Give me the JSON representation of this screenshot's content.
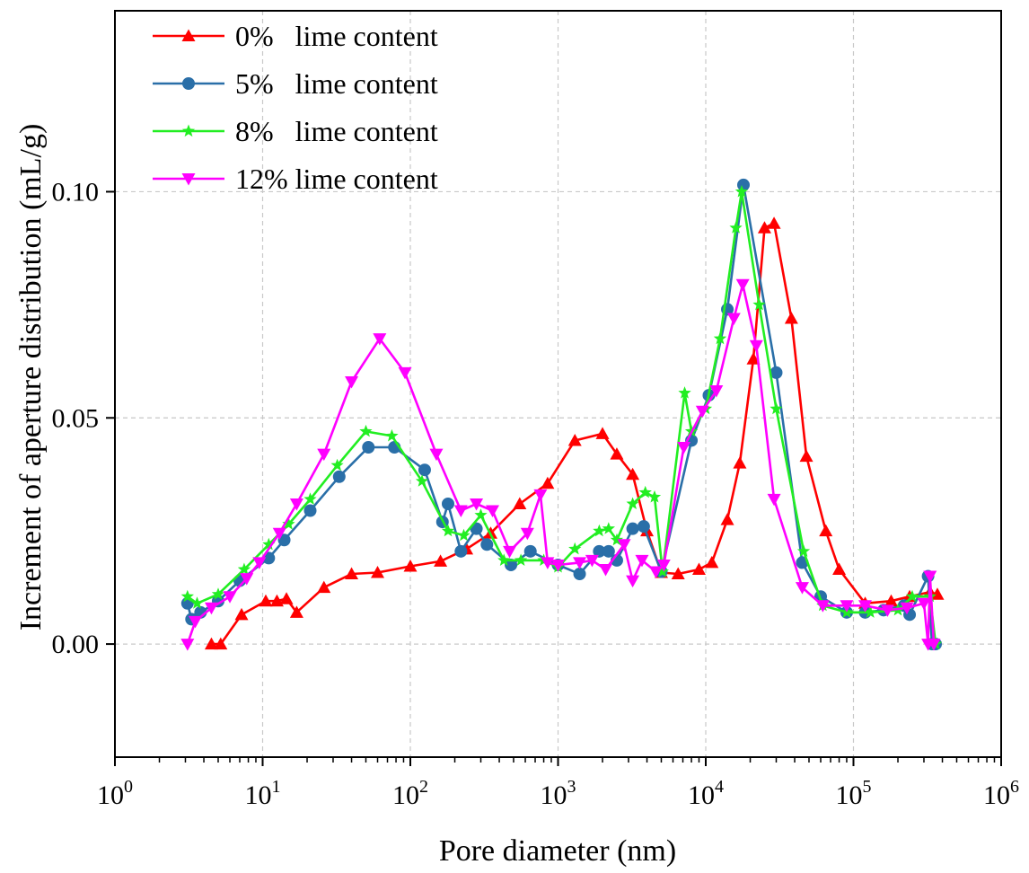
{
  "chart_data": {
    "type": "line",
    "xscale": "log",
    "xlabel": "Pore diameter (nm)",
    "ylabel": "Increment of aperture distribution (mL/g)",
    "xlim": [
      1,
      1000000
    ],
    "ylim": [
      -0.025,
      0.14
    ],
    "grid": true,
    "legend_position": "top-left",
    "x_ticks": [
      {
        "value": 1,
        "base": "10",
        "exp": "0"
      },
      {
        "value": 10,
        "base": "10",
        "exp": "1"
      },
      {
        "value": 100,
        "base": "10",
        "exp": "2"
      },
      {
        "value": 1000,
        "base": "10",
        "exp": "3"
      },
      {
        "value": 10000,
        "base": "10",
        "exp": "4"
      },
      {
        "value": 100000,
        "base": "10",
        "exp": "5"
      },
      {
        "value": 1000000,
        "base": "10",
        "exp": "6"
      }
    ],
    "y_ticks": [
      {
        "value": 0.0,
        "label": "0.00"
      },
      {
        "value": 0.05,
        "label": "0.05"
      },
      {
        "value": 0.1,
        "label": "0.10"
      }
    ],
    "series": [
      {
        "name": "0%   lime content",
        "color": "#ff0000",
        "marker": "triangle-up",
        "points": [
          [
            4.5,
            0.0
          ],
          [
            5.2,
            0.0
          ],
          [
            7.2,
            0.0065
          ],
          [
            10.5,
            0.0095
          ],
          [
            12.5,
            0.0095
          ],
          [
            14.5,
            0.01
          ],
          [
            17,
            0.007
          ],
          [
            26,
            0.0125
          ],
          [
            40,
            0.0155
          ],
          [
            60,
            0.0158
          ],
          [
            100,
            0.0172
          ],
          [
            160,
            0.0183
          ],
          [
            240,
            0.021
          ],
          [
            350,
            0.0245
          ],
          [
            550,
            0.031
          ],
          [
            850,
            0.0355
          ],
          [
            1300,
            0.045
          ],
          [
            2000,
            0.0465
          ],
          [
            2500,
            0.042
          ],
          [
            3200,
            0.0375
          ],
          [
            4000,
            0.025
          ],
          [
            5000,
            0.0158
          ],
          [
            6500,
            0.0155
          ],
          [
            9000,
            0.0165
          ],
          [
            11000,
            0.018
          ],
          [
            14000,
            0.0275
          ],
          [
            17000,
            0.04
          ],
          [
            21000,
            0.063
          ],
          [
            25000,
            0.092
          ],
          [
            29000,
            0.093
          ],
          [
            38000,
            0.072
          ],
          [
            48000,
            0.0415
          ],
          [
            65000,
            0.025
          ],
          [
            80000,
            0.0165
          ],
          [
            120000,
            0.009
          ],
          [
            180000,
            0.0095
          ],
          [
            240000,
            0.0105
          ],
          [
            330000,
            0.0115
          ],
          [
            370000,
            0.011
          ]
        ]
      },
      {
        "name": "5%   lime content",
        "color": "#2a6fa8",
        "marker": "circle",
        "points": [
          [
            3.1,
            0.009
          ],
          [
            3.3,
            0.0055
          ],
          [
            3.8,
            0.007
          ],
          [
            5,
            0.0095
          ],
          [
            7,
            0.014
          ],
          [
            11,
            0.019
          ],
          [
            14,
            0.023
          ],
          [
            21,
            0.0295
          ],
          [
            33,
            0.037
          ],
          [
            52,
            0.0435
          ],
          [
            78,
            0.0435
          ],
          [
            125,
            0.0385
          ],
          [
            165,
            0.027
          ],
          [
            180,
            0.031
          ],
          [
            220,
            0.0205
          ],
          [
            280,
            0.0255
          ],
          [
            330,
            0.022
          ],
          [
            480,
            0.0175
          ],
          [
            650,
            0.0205
          ],
          [
            1000,
            0.0175
          ],
          [
            1400,
            0.0155
          ],
          [
            1900,
            0.0205
          ],
          [
            2200,
            0.0205
          ],
          [
            2500,
            0.0185
          ],
          [
            3200,
            0.0255
          ],
          [
            3800,
            0.026
          ],
          [
            5000,
            0.016
          ],
          [
            8000,
            0.045
          ],
          [
            10500,
            0.055
          ],
          [
            14000,
            0.074
          ],
          [
            18000,
            0.1015
          ],
          [
            30000,
            0.06
          ],
          [
            45000,
            0.018
          ],
          [
            60000,
            0.0105
          ],
          [
            90000,
            0.007
          ],
          [
            120000,
            0.007
          ],
          [
            160000,
            0.0075
          ],
          [
            220000,
            0.0085
          ],
          [
            240000,
            0.0065
          ],
          [
            320000,
            0.015
          ],
          [
            340000,
            0.0
          ],
          [
            360000,
            0.0
          ]
        ]
      },
      {
        "name": "8%   lime content",
        "color": "#22ee22",
        "marker": "star",
        "points": [
          [
            3.1,
            0.0105
          ],
          [
            3.6,
            0.009
          ],
          [
            5,
            0.011
          ],
          [
            7.5,
            0.0165
          ],
          [
            11,
            0.022
          ],
          [
            15,
            0.0265
          ],
          [
            21,
            0.032
          ],
          [
            32,
            0.0395
          ],
          [
            50,
            0.047
          ],
          [
            75,
            0.046
          ],
          [
            120,
            0.036
          ],
          [
            180,
            0.025
          ],
          [
            230,
            0.024
          ],
          [
            300,
            0.0285
          ],
          [
            430,
            0.0185
          ],
          [
            560,
            0.0185
          ],
          [
            800,
            0.0185
          ],
          [
            1000,
            0.017
          ],
          [
            1300,
            0.021
          ],
          [
            1900,
            0.025
          ],
          [
            2200,
            0.0255
          ],
          [
            2500,
            0.023
          ],
          [
            3200,
            0.031
          ],
          [
            3900,
            0.0335
          ],
          [
            4500,
            0.0325
          ],
          [
            5100,
            0.016
          ],
          [
            7200,
            0.0555
          ],
          [
            8000,
            0.047
          ],
          [
            10000,
            0.052
          ],
          [
            12500,
            0.0675
          ],
          [
            16000,
            0.092
          ],
          [
            17500,
            0.1
          ],
          [
            23000,
            0.075
          ],
          [
            30000,
            0.052
          ],
          [
            46000,
            0.0205
          ],
          [
            62000,
            0.0085
          ],
          [
            90000,
            0.007
          ],
          [
            130000,
            0.007
          ],
          [
            200000,
            0.0075
          ],
          [
            250000,
            0.0105
          ],
          [
            330000,
            0.0105
          ],
          [
            360000,
            0.0
          ]
        ]
      },
      {
        "name": "12% lime content",
        "color": "#ff00ff",
        "marker": "triangle-down",
        "points": [
          [
            3.1,
            0.0
          ],
          [
            3.5,
            0.005
          ],
          [
            4.5,
            0.008
          ],
          [
            6,
            0.0105
          ],
          [
            7.8,
            0.0145
          ],
          [
            9.5,
            0.018
          ],
          [
            13,
            0.0245
          ],
          [
            17,
            0.031
          ],
          [
            26,
            0.042
          ],
          [
            40,
            0.058
          ],
          [
            62,
            0.0675
          ],
          [
            92,
            0.06
          ],
          [
            150,
            0.042
          ],
          [
            220,
            0.0295
          ],
          [
            280,
            0.031
          ],
          [
            360,
            0.0295
          ],
          [
            470,
            0.0205
          ],
          [
            620,
            0.0245
          ],
          [
            760,
            0.033
          ],
          [
            850,
            0.018
          ],
          [
            1000,
            0.0175
          ],
          [
            1400,
            0.018
          ],
          [
            1700,
            0.0185
          ],
          [
            2100,
            0.0165
          ],
          [
            2800,
            0.022
          ],
          [
            3200,
            0.014
          ],
          [
            3700,
            0.0185
          ],
          [
            4600,
            0.016
          ],
          [
            5200,
            0.0175
          ],
          [
            7100,
            0.0435
          ],
          [
            9500,
            0.0515
          ],
          [
            11800,
            0.056
          ],
          [
            15500,
            0.072
          ],
          [
            17800,
            0.0795
          ],
          [
            22000,
            0.066
          ],
          [
            29000,
            0.032
          ],
          [
            45000,
            0.0125
          ],
          [
            62000,
            0.0085
          ],
          [
            90000,
            0.0085
          ],
          [
            120000,
            0.0085
          ],
          [
            170000,
            0.0075
          ],
          [
            230000,
            0.008
          ],
          [
            300000,
            0.009
          ],
          [
            320000,
            0.0
          ],
          [
            330000,
            0.015
          ],
          [
            350000,
            0.0
          ]
        ]
      }
    ]
  }
}
